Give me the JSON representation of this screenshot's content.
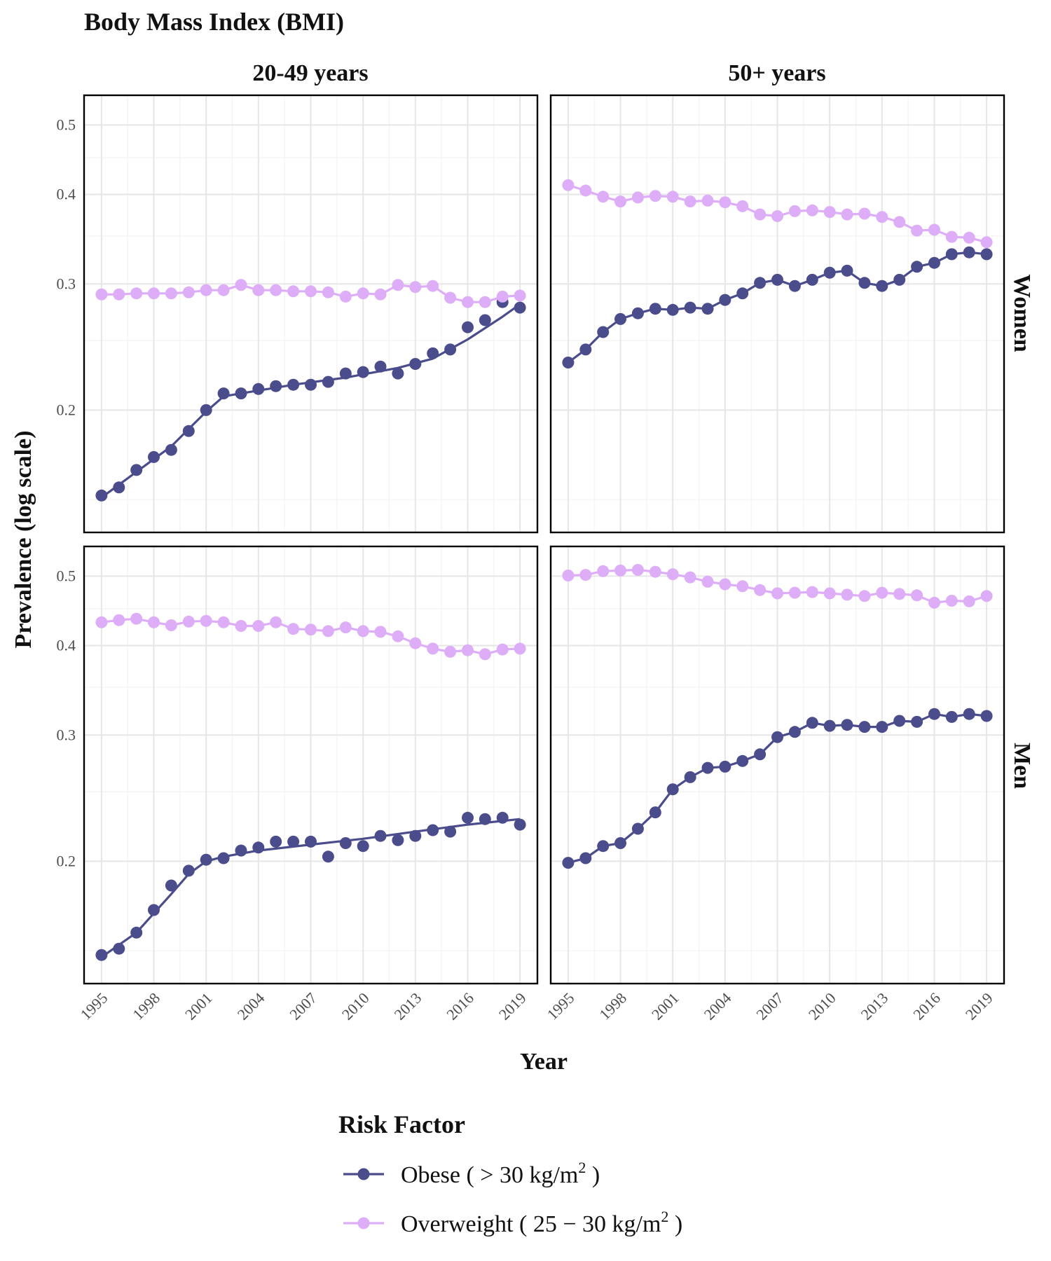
{
  "chart_data": {
    "type": "line",
    "title": "Body Mass Index (BMI)",
    "xlabel": "Year",
    "ylabel": "Prevalence (log scale)",
    "y_scale": "log",
    "ylim": [
      0.135,
      0.55
    ],
    "xlim": [
      1994,
      2020
    ],
    "x_ticks": [
      1995,
      1998,
      2001,
      2004,
      2007,
      2010,
      2013,
      2016,
      2019
    ],
    "x_tick_labels": [
      "1995",
      "1998",
      "2001",
      "2004",
      "2007",
      "2010",
      "2013",
      "2016",
      "2019"
    ],
    "y_ticks": [
      0.2,
      0.3,
      0.4,
      0.5
    ],
    "y_tick_labels": [
      "0.2",
      "0.3",
      "0.4",
      "0.5"
    ],
    "grid": true,
    "column_facets": [
      "20-49 years",
      "50+ years"
    ],
    "row_facets": [
      "Women",
      "Men"
    ],
    "x": [
      1995,
      1996,
      1997,
      1998,
      1999,
      2000,
      2001,
      2002,
      2003,
      2004,
      2005,
      2006,
      2007,
      2008,
      2009,
      2010,
      2011,
      2012,
      2013,
      2014,
      2015,
      2016,
      2017,
      2018,
      2019
    ],
    "legend": {
      "title": "Risk Factor",
      "position": "bottom",
      "items": [
        {
          "label": "Obese ( > 30 kg/m",
          "sup": "2",
          "suffix": " )",
          "color": "#4b4c8c"
        },
        {
          "label": "Overweight ( 25 − 30 kg/m",
          "sup": "2",
          "suffix": " )",
          "color": "#deadf8"
        }
      ]
    },
    "panels": [
      {
        "row": "Women",
        "col": "20-49 years",
        "series": [
          {
            "name": "Obese",
            "color": "#4b4c8c",
            "values": [
              0.152,
              0.156,
              0.165,
              0.172,
              0.176,
              0.187,
              0.2,
              0.211,
              0.211,
              0.214,
              0.216,
              0.217,
              0.217,
              0.219,
              0.225,
              0.226,
              0.23,
              0.225,
              0.232,
              0.24,
              0.243,
              0.261,
              0.267,
              0.283,
              0.278
            ],
            "trend": [
              [
                1995,
                0.151
              ],
              [
                1997,
                0.164
              ],
              [
                1999,
                0.178
              ],
              [
                2001,
                0.199
              ],
              [
                2002,
                0.209
              ],
              [
                2003,
                0.211
              ],
              [
                2006,
                0.217
              ],
              [
                2009,
                0.222
              ],
              [
                2012,
                0.229
              ],
              [
                2014,
                0.236
              ],
              [
                2016,
                0.251
              ],
              [
                2018,
                0.27
              ],
              [
                2019,
                0.281
              ]
            ]
          },
          {
            "name": "Overweight",
            "color": "#deadf8",
            "values": [
              0.29,
              0.29,
              0.291,
              0.291,
              0.291,
              0.292,
              0.294,
              0.294,
              0.299,
              0.294,
              0.294,
              0.293,
              0.293,
              0.292,
              0.288,
              0.291,
              0.29,
              0.299,
              0.297,
              0.298,
              0.287,
              0.283,
              0.283,
              0.288,
              0.289
            ]
          }
        ]
      },
      {
        "row": "Women",
        "col": "50+ years",
        "series": [
          {
            "name": "Obese",
            "color": "#4b4c8c",
            "values": [
              0.233,
              0.243,
              0.257,
              0.268,
              0.273,
              0.277,
              0.276,
              0.278,
              0.277,
              0.285,
              0.291,
              0.301,
              0.304,
              0.298,
              0.304,
              0.311,
              0.313,
              0.301,
              0.298,
              0.304,
              0.317,
              0.321,
              0.33,
              0.332,
              0.33
            ]
          },
          {
            "name": "Overweight",
            "color": "#deadf8",
            "values": [
              0.412,
              0.405,
              0.397,
              0.391,
              0.396,
              0.398,
              0.397,
              0.391,
              0.392,
              0.39,
              0.385,
              0.375,
              0.373,
              0.379,
              0.38,
              0.378,
              0.375,
              0.376,
              0.372,
              0.366,
              0.356,
              0.357,
              0.349,
              0.348,
              0.343
            ]
          }
        ]
      },
      {
        "row": "Men",
        "col": "20-49 years",
        "series": [
          {
            "name": "Obese",
            "color": "#4b4c8c",
            "values": [
              0.148,
              0.151,
              0.159,
              0.171,
              0.185,
              0.194,
              0.201,
              0.202,
              0.207,
              0.209,
              0.213,
              0.213,
              0.213,
              0.203,
              0.212,
              0.21,
              0.217,
              0.214,
              0.217,
              0.221,
              0.22,
              0.23,
              0.229,
              0.23,
              0.225
            ],
            "trend": [
              [
                1995,
                0.147
              ],
              [
                1997,
                0.159
              ],
              [
                1999,
                0.18
              ],
              [
                2000,
                0.192
              ],
              [
                2001,
                0.2
              ],
              [
                2002,
                0.203
              ],
              [
                2004,
                0.207
              ],
              [
                2007,
                0.211
              ],
              [
                2010,
                0.215
              ],
              [
                2013,
                0.22
              ],
              [
                2016,
                0.225
              ],
              [
                2019,
                0.229
              ]
            ]
          },
          {
            "name": "Overweight",
            "color": "#deadf8",
            "values": [
              0.431,
              0.434,
              0.436,
              0.431,
              0.427,
              0.432,
              0.433,
              0.431,
              0.426,
              0.426,
              0.431,
              0.422,
              0.421,
              0.419,
              0.424,
              0.419,
              0.418,
              0.412,
              0.403,
              0.396,
              0.392,
              0.394,
              0.389,
              0.395,
              0.396
            ]
          }
        ]
      },
      {
        "row": "Men",
        "col": "50+ years",
        "series": [
          {
            "name": "Obese",
            "color": "#4b4c8c",
            "values": [
              0.199,
              0.202,
              0.21,
              0.212,
              0.222,
              0.234,
              0.252,
              0.262,
              0.27,
              0.271,
              0.276,
              0.282,
              0.298,
              0.303,
              0.312,
              0.309,
              0.31,
              0.308,
              0.308,
              0.314,
              0.313,
              0.321,
              0.318,
              0.321,
              0.319
            ]
          },
          {
            "name": "Overweight",
            "color": "#deadf8",
            "values": [
              0.501,
              0.502,
              0.508,
              0.509,
              0.51,
              0.507,
              0.503,
              0.498,
              0.491,
              0.487,
              0.484,
              0.478,
              0.473,
              0.474,
              0.475,
              0.473,
              0.471,
              0.469,
              0.474,
              0.472,
              0.47,
              0.459,
              0.462,
              0.461,
              0.469
            ]
          }
        ]
      }
    ]
  }
}
